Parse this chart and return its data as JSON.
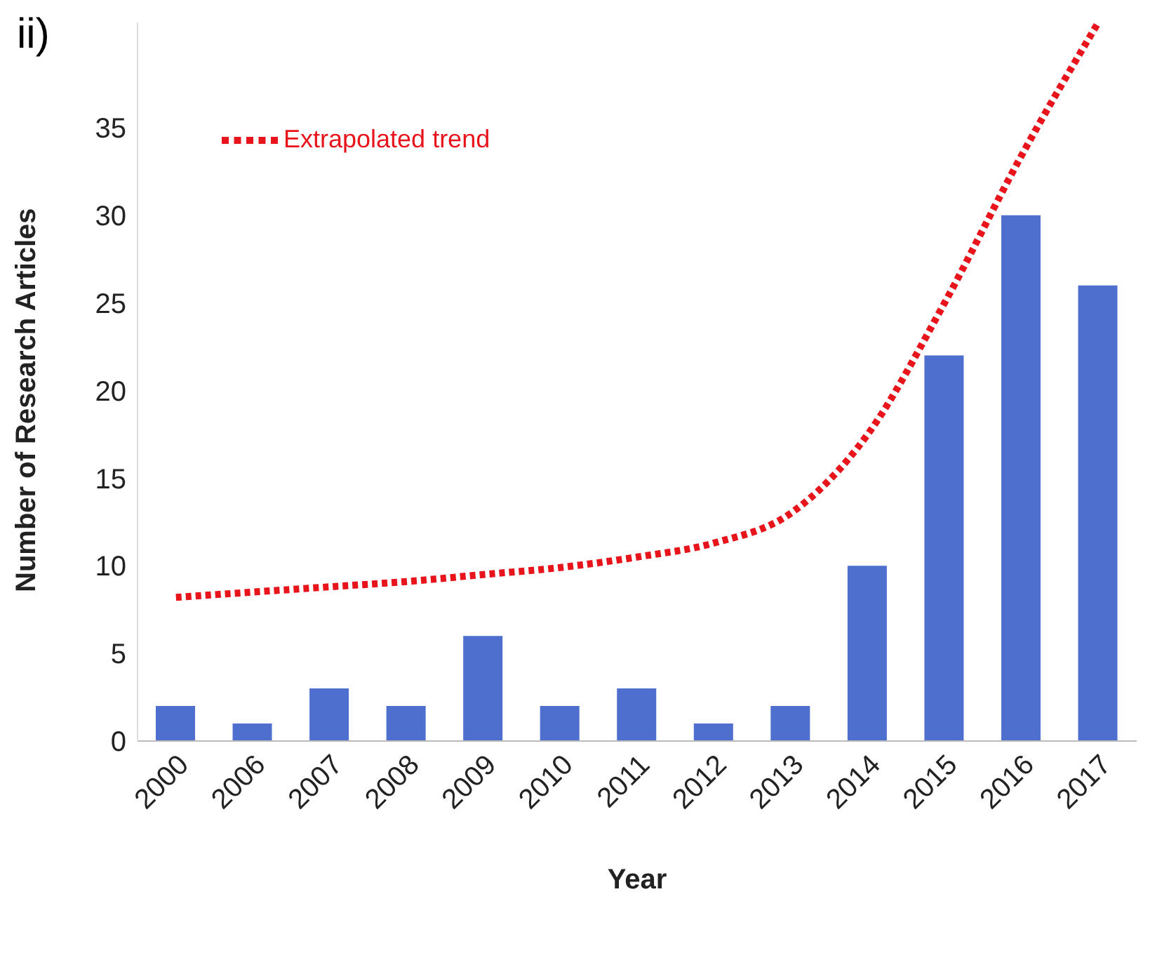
{
  "chart_data": {
    "type": "bar",
    "title": "ii)",
    "xlabel": "Year",
    "ylabel": "Number of Research Articles",
    "categories": [
      "2000",
      "2006",
      "2007",
      "2008",
      "2009",
      "2010",
      "2011",
      "2012",
      "2013",
      "2014",
      "2015",
      "2016",
      "2017"
    ],
    "series": [
      {
        "color": "#4f6fcf",
        "values": [
          2,
          1,
          3,
          2,
          6,
          2,
          3,
          1,
          2,
          10,
          22,
          30,
          26
        ]
      },
      {
        "type": "line",
        "name": "Extrapolated trend",
        "color": "#e8141c",
        "line_style": "dotted",
        "marker": "none",
        "values": [
          8.2,
          8.5,
          8.8,
          9.1,
          9.5,
          9.9,
          10.5,
          11.3,
          13,
          17.5,
          25,
          33.4,
          41
        ]
      }
    ],
    "ylim": [
      0,
      41
    ],
    "yticks": [
      0,
      5,
      10,
      15,
      20,
      25,
      30,
      35
    ],
    "grid": false,
    "legend": "top left"
  }
}
